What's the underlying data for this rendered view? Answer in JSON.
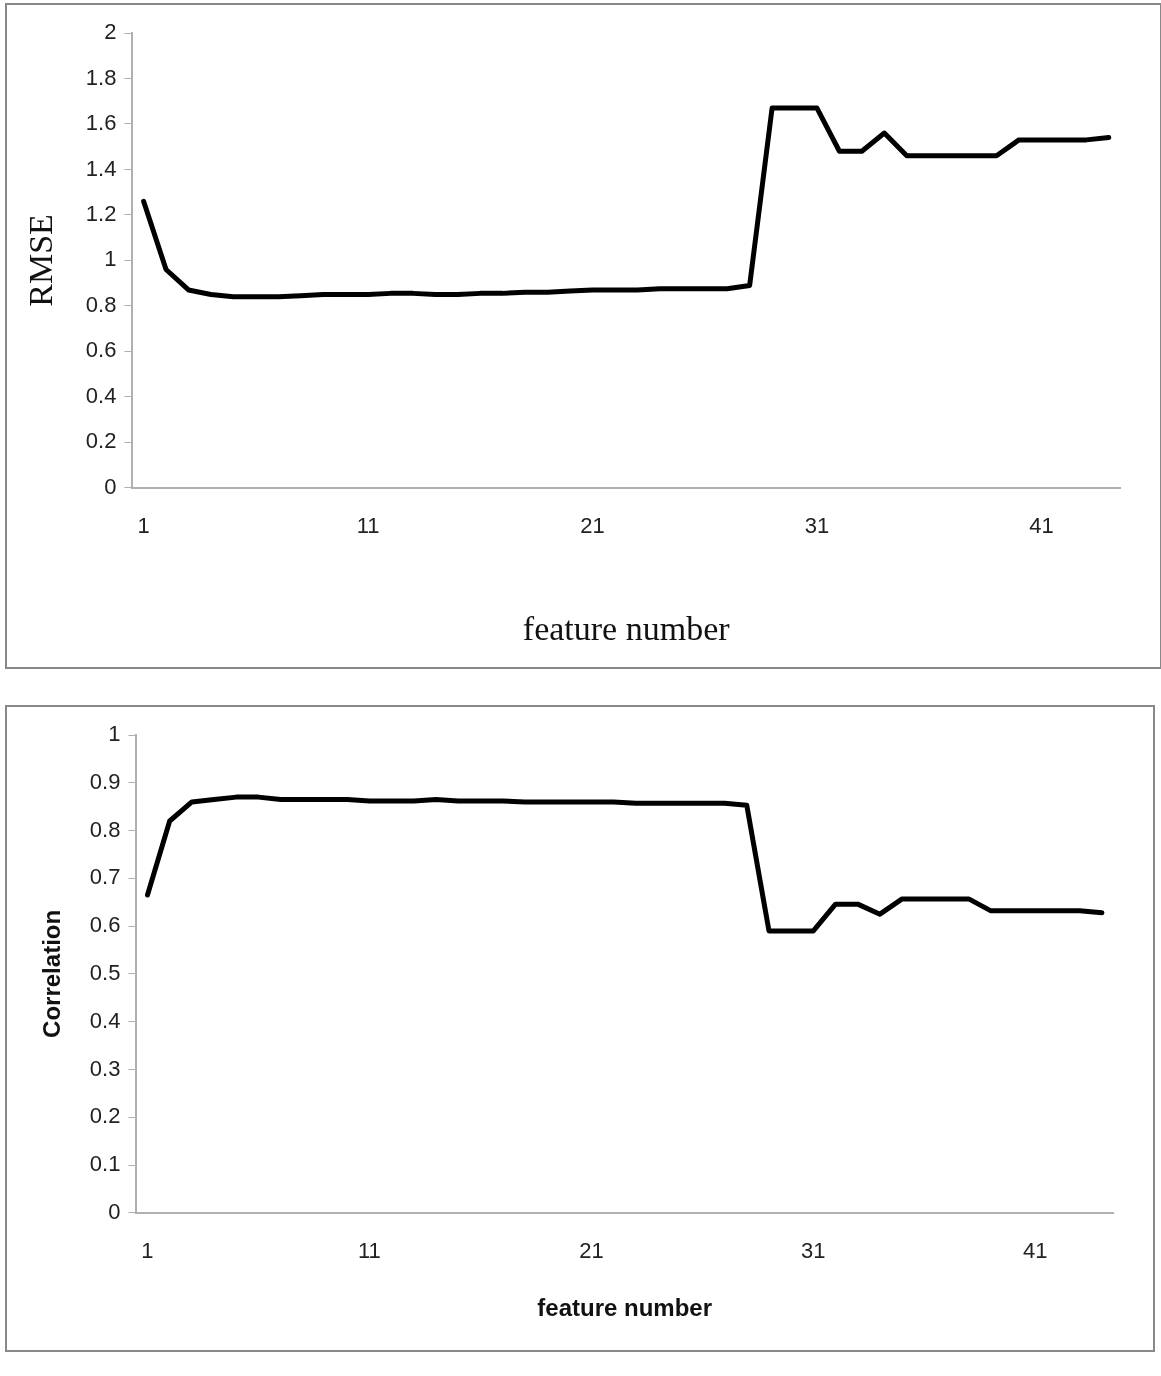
{
  "chart_data": [
    {
      "type": "line",
      "xlabel": "feature number",
      "ylabel": "RMSE",
      "categories": [
        "1",
        null,
        null,
        null,
        null,
        null,
        null,
        null,
        null,
        null,
        "11",
        null,
        null,
        null,
        null,
        null,
        null,
        null,
        null,
        null,
        "21",
        null,
        null,
        null,
        null,
        null,
        null,
        null,
        null,
        null,
        "31",
        null,
        null,
        null,
        null,
        null,
        null,
        null,
        null,
        null,
        "41",
        null,
        null,
        null
      ],
      "values": [
        1.26,
        0.96,
        0.87,
        0.85,
        0.84,
        0.84,
        0.84,
        0.845,
        0.85,
        0.85,
        0.85,
        0.855,
        0.855,
        0.85,
        0.85,
        0.855,
        0.855,
        0.86,
        0.86,
        0.865,
        0.87,
        0.87,
        0.87,
        0.875,
        0.875,
        0.875,
        0.875,
        0.89,
        1.67,
        1.67,
        1.67,
        1.48,
        1.48,
        1.56,
        1.46,
        1.46,
        1.46,
        1.46,
        1.46,
        1.53,
        1.53,
        1.53,
        1.53,
        1.54
      ],
      "color": "#000000",
      "ylim": [
        0,
        2
      ],
      "yticks": [
        0,
        0.2,
        0.4,
        0.6,
        0.8,
        1,
        1.2,
        1.4,
        1.6,
        1.8,
        2
      ],
      "grid": false,
      "legend": false,
      "marker": "none",
      "line_style": "solid"
    },
    {
      "type": "line",
      "xlabel": "feature number",
      "ylabel": "Correlation",
      "categories": [
        "1",
        null,
        null,
        null,
        null,
        null,
        null,
        null,
        null,
        null,
        "11",
        null,
        null,
        null,
        null,
        null,
        null,
        null,
        null,
        null,
        "21",
        null,
        null,
        null,
        null,
        null,
        null,
        null,
        null,
        null,
        "31",
        null,
        null,
        null,
        null,
        null,
        null,
        null,
        null,
        null,
        "41",
        null,
        null,
        null
      ],
      "values": [
        0.665,
        0.82,
        0.86,
        0.865,
        0.87,
        0.87,
        0.865,
        0.865,
        0.865,
        0.865,
        0.862,
        0.862,
        0.862,
        0.865,
        0.862,
        0.862,
        0.862,
        0.86,
        0.86,
        0.86,
        0.86,
        0.86,
        0.857,
        0.857,
        0.857,
        0.857,
        0.857,
        0.853,
        0.59,
        0.59,
        0.59,
        0.646,
        0.646,
        0.625,
        0.657,
        0.657,
        0.657,
        0.657,
        0.632,
        0.632,
        0.632,
        0.632,
        0.632,
        0.628
      ],
      "color": "#000000",
      "ylim": [
        0,
        1
      ],
      "yticks": [
        0,
        0.1,
        0.2,
        0.3,
        0.4,
        0.5,
        0.6,
        0.7,
        0.8,
        0.9,
        1
      ],
      "grid": false,
      "legend": false,
      "marker": "none",
      "line_style": "solid"
    }
  ]
}
